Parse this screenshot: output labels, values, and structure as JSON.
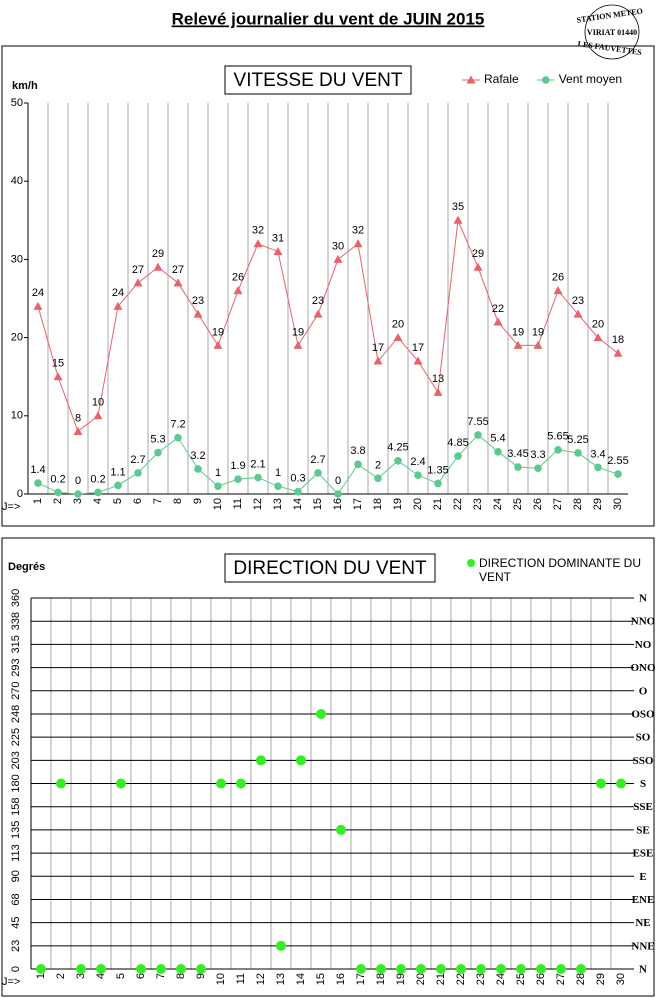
{
  "title": "Relevé journalier du vent de JUIN 2015",
  "stamp": {
    "top": "STATION METEO",
    "middle": "VIRIAT 01440",
    "bottom": "LES FAUVETTES"
  },
  "chart_data": [
    {
      "type": "line",
      "title": "VITESSE DU VENT",
      "y_label": "km/h",
      "x_label": "J=>",
      "categories": [
        "1",
        "2",
        "3",
        "4",
        "5",
        "6",
        "7",
        "8",
        "9",
        "10",
        "11",
        "12",
        "13",
        "14",
        "15",
        "16",
        "17",
        "18",
        "19",
        "20",
        "21",
        "22",
        "23",
        "24",
        "25",
        "26",
        "27",
        "28",
        "29",
        "30"
      ],
      "series": [
        {
          "name": "Rafale",
          "color": "#e8626a",
          "marker": "triangle",
          "values": [
            24,
            15,
            8,
            10,
            24,
            27,
            29,
            27,
            23,
            19,
            26,
            32,
            31,
            19,
            23,
            30,
            32,
            17,
            20,
            17,
            13,
            35,
            29,
            22,
            19,
            19,
            26,
            23,
            20,
            18
          ]
        },
        {
          "name": "Vent moyen",
          "color": "#5cc98f",
          "marker": "circle",
          "values": [
            1.4,
            0.2,
            0,
            0.2,
            1.1,
            2.7,
            5.3,
            7.2,
            3.2,
            1,
            1.9,
            2.1,
            1,
            0.3,
            2.7,
            0,
            3.8,
            2,
            4.25,
            2.4,
            1.35,
            4.85,
            7.55,
            5.4,
            3.45,
            3.3,
            5.65,
            5.25,
            3.4,
            2.55
          ]
        }
      ],
      "ylim": [
        0,
        50
      ],
      "yticks": [
        0,
        10,
        20,
        30,
        40,
        50
      ],
      "grid": "x",
      "legend": "top-right"
    },
    {
      "type": "scatter",
      "title": "DIRECTION DU VENT",
      "y_label": "Degrés",
      "x_label": "J=>",
      "categories": [
        "1",
        "2",
        "3",
        "4",
        "5",
        "6",
        "7",
        "8",
        "9",
        "10",
        "11",
        "12",
        "13",
        "14",
        "15",
        "16",
        "17",
        "18",
        "19",
        "20",
        "21",
        "22",
        "23",
        "24",
        "25",
        "26",
        "27",
        "28",
        "29",
        "30"
      ],
      "series": [
        {
          "name": "DIRECTION DOMINANTE DU VENT",
          "color": "#33ee22",
          "marker": "circle",
          "values": [
            0,
            180,
            0,
            0,
            180,
            0,
            0,
            0,
            0,
            180,
            180,
            202.5,
            22.5,
            202.5,
            247.5,
            135,
            0,
            0,
            0,
            0,
            0,
            0,
            0,
            0,
            0,
            0,
            0,
            0,
            180,
            180
          ]
        }
      ],
      "ylim": [
        0,
        360
      ],
      "yticks": [
        0,
        {
          "value": 22.5,
          "label": "23"
        },
        45,
        {
          "value": 67.5,
          "label": "68"
        },
        90,
        {
          "value": 112.5,
          "label": "113"
        },
        135,
        {
          "value": 157.5,
          "label": "158"
        },
        180,
        {
          "value": 202.5,
          "label": "203"
        },
        225,
        {
          "value": 247.5,
          "label": "248"
        },
        270,
        {
          "value": 292.5,
          "label": "293"
        },
        315,
        {
          "value": 337.5,
          "label": "338"
        },
        360
      ],
      "y2lim": [
        0,
        360
      ],
      "y2ticks": [
        {
          "value": 0,
          "label": "N"
        },
        {
          "value": 22.5,
          "label": "NNE"
        },
        {
          "value": 45,
          "label": "NE"
        },
        {
          "value": 67.5,
          "label": "ENE"
        },
        {
          "value": 90,
          "label": "E"
        },
        {
          "value": 112.5,
          "label": "ESE"
        },
        {
          "value": 135,
          "label": "SE"
        },
        {
          "value": 157.5,
          "label": "SSE"
        },
        {
          "value": 180,
          "label": "S"
        },
        {
          "value": 202.5,
          "label": "SSO"
        },
        {
          "value": 225,
          "label": "SO"
        },
        {
          "value": 247.5,
          "label": "OSO"
        },
        {
          "value": 270,
          "label": "O"
        },
        {
          "value": 292.5,
          "label": "ONO"
        },
        {
          "value": 315,
          "label": "NO"
        },
        {
          "value": 337.5,
          "label": "NNO"
        },
        {
          "value": 360,
          "label": "N"
        }
      ],
      "grid": "both",
      "legend": "top-right"
    }
  ]
}
